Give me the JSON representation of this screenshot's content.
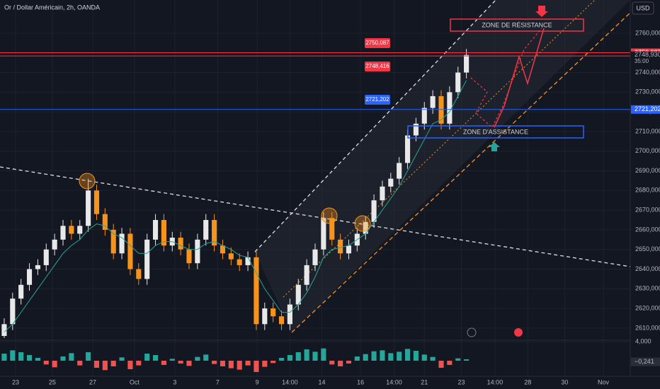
{
  "chart_data": {
    "type": "candlestick",
    "title": "Or / Dollar Américain, 2h, OANDA",
    "currency": "USD",
    "up_color": "#e8e8e8",
    "down_color": "#f7931a",
    "open": [
      2606,
      2612,
      2625,
      2632,
      2640,
      2642,
      2650,
      2655,
      2662,
      2658,
      2662,
      2680,
      2668,
      2660,
      2648,
      2658,
      2640,
      2635,
      2655,
      2665,
      2652,
      2656,
      2650,
      2643,
      2655,
      2665,
      2652,
      2648,
      2645,
      2642,
      2646,
      2612,
      2620,
      2616,
      2612,
      2622,
      2632,
      2642,
      2650,
      2666,
      2655,
      2648,
      2652,
      2658,
      2664,
      2675,
      2682,
      2686,
      2694,
      2708,
      2714,
      2722,
      2728,
      2714,
      2730,
      2740
    ],
    "high": [
      2615,
      2628,
      2635,
      2643,
      2645,
      2653,
      2658,
      2665,
      2665,
      2665,
      2686,
      2683,
      2671,
      2663,
      2661,
      2661,
      2643,
      2658,
      2668,
      2668,
      2659,
      2659,
      2653,
      2658,
      2668,
      2668,
      2655,
      2651,
      2648,
      2649,
      2649,
      2623,
      2623,
      2619,
      2625,
      2635,
      2645,
      2653,
      2669,
      2669,
      2658,
      2655,
      2661,
      2667,
      2678,
      2685,
      2689,
      2697,
      2711,
      2717,
      2725,
      2731,
      2731,
      2733,
      2743,
      2752
    ],
    "low": [
      2605,
      2609,
      2622,
      2629,
      2637,
      2639,
      2647,
      2652,
      2655,
      2655,
      2659,
      2665,
      2657,
      2645,
      2645,
      2637,
      2632,
      2632,
      2652,
      2649,
      2649,
      2647,
      2640,
      2640,
      2652,
      2649,
      2645,
      2642,
      2639,
      2639,
      2609,
      2609,
      2613,
      2609,
      2609,
      2619,
      2629,
      2639,
      2647,
      2652,
      2645,
      2645,
      2649,
      2655,
      2661,
      2672,
      2679,
      2683,
      2691,
      2705,
      2711,
      2719,
      2711,
      2711,
      2727,
      2737
    ],
    "close": [
      2612,
      2625,
      2632,
      2640,
      2642,
      2650,
      2655,
      2662,
      2658,
      2662,
      2680,
      2668,
      2660,
      2648,
      2658,
      2640,
      2635,
      2655,
      2665,
      2652,
      2656,
      2650,
      2643,
      2655,
      2665,
      2652,
      2648,
      2645,
      2642,
      2646,
      2612,
      2620,
      2616,
      2612,
      2622,
      2632,
      2642,
      2650,
      2666,
      2655,
      2648,
      2652,
      2658,
      2664,
      2675,
      2682,
      2686,
      2694,
      2708,
      2714,
      2722,
      2728,
      2714,
      2730,
      2740,
      2748.93
    ],
    "ma": {
      "color": "#26a69a",
      "values": [
        2608,
        2612,
        2618,
        2624,
        2630,
        2636,
        2642,
        2648,
        2652,
        2655,
        2660,
        2663,
        2662,
        2658,
        2656,
        2652,
        2648,
        2648,
        2652,
        2654,
        2654,
        2652,
        2650,
        2650,
        2653,
        2654,
        2652,
        2650,
        2647,
        2646,
        2638,
        2630,
        2624,
        2618,
        2618,
        2622,
        2628,
        2636,
        2646,
        2650,
        2651,
        2652,
        2655,
        2658,
        2664,
        2670,
        2676,
        2682,
        2690,
        2698,
        2706,
        2714,
        2716,
        2720,
        2728,
        2736
      ]
    },
    "xlim": [
      -0.5,
      74.5
    ],
    "ylim": [
      2604.2,
      2776.9
    ],
    "yticks": [
      {
        "value": 2610,
        "label": "2610,000"
      },
      {
        "value": 2620,
        "label": "2620,000"
      },
      {
        "value": 2630,
        "label": "2630,000"
      },
      {
        "value": 2640,
        "label": "2640,000"
      },
      {
        "value": 2650,
        "label": "2650,000"
      },
      {
        "value": 2660,
        "label": "2660,000"
      },
      {
        "value": 2670,
        "label": "2670,000"
      },
      {
        "value": 2680,
        "label": "2680,000"
      },
      {
        "value": 2690,
        "label": "2690,000"
      },
      {
        "value": 2700,
        "label": "2700,000"
      },
      {
        "value": 2710,
        "label": "2710,000"
      },
      {
        "value": 2720,
        "label": "2720,000"
      },
      {
        "value": 2730,
        "label": "2730,000"
      },
      {
        "value": 2740,
        "label": "2740,000"
      },
      {
        "value": 2750,
        "label": "2750,000"
      },
      {
        "value": 2760,
        "label": "2760,000"
      }
    ],
    "xticks": [
      {
        "value": 1.35,
        "label": "23"
      },
      {
        "value": 5.73,
        "label": "25"
      },
      {
        "value": 10.54,
        "label": "27"
      },
      {
        "value": 15.5,
        "label": "Oct"
      },
      {
        "value": 20.3,
        "label": "3"
      },
      {
        "value": 25.4,
        "label": "7"
      },
      {
        "value": 30.1,
        "label": "9"
      },
      {
        "value": 34,
        "label": "14:00"
      },
      {
        "value": 37.8,
        "label": "14"
      },
      {
        "value": 42.4,
        "label": "16"
      },
      {
        "value": 46.4,
        "label": "14:00"
      },
      {
        "value": 50,
        "label": "21"
      },
      {
        "value": 54.4,
        "label": "23"
      },
      {
        "value": 58.4,
        "label": "14:00"
      },
      {
        "value": 62.3,
        "label": "28"
      },
      {
        "value": 66.7,
        "label": "30"
      },
      {
        "value": 71.3,
        "label": "Nov"
      }
    ],
    "levels": [
      {
        "value": 2750.087,
        "label": "2750,087",
        "color": "#f23645"
      },
      {
        "value": 2748.416,
        "label": "2748,416",
        "color": "#f23645"
      },
      {
        "value": 2721.202,
        "label": "2721,202",
        "color": "#2962ff"
      }
    ],
    "last_price": {
      "value": 2748.93,
      "label": "2748,930",
      "countdown": "35:00"
    },
    "annotations": [
      "ZONE DE RÉSISTANCE",
      "ZONE D'ASSISTANCE"
    ],
    "macd": {
      "ylim": [
        -3,
        4.2
      ],
      "yticks": [
        {
          "value": 4,
          "label": "4,000"
        }
      ],
      "up_color": "#26a69a",
      "down_color": "#ef5350",
      "values": [
        1.5,
        2.2,
        1.8,
        1.2,
        0.6,
        -0.8,
        -1.4,
        0.9,
        1.6,
        -1.0,
        1.8,
        -1.5,
        -2.0,
        -1.2,
        0.7,
        -1.8,
        -1.0,
        1.5,
        1.2,
        -0.9,
        0.4,
        -0.6,
        -1.1,
        0.8,
        1.3,
        -0.7,
        -1.2,
        -1.6,
        -1.9,
        -1.0,
        -2.4,
        -1.3,
        -0.5,
        0.6,
        1.2,
        1.8,
        2.4,
        1.9,
        2.6,
        -0.8,
        -1.2,
        -0.6,
        0.9,
        1.4,
        2.0,
        2.2,
        1.6,
        1.9,
        2.5,
        2.1,
        1.3,
        0.8,
        -1.5,
        -0.9,
        0.5,
        0.3
      ],
      "last": {
        "value": -0.241,
        "label": "−0,241"
      }
    }
  }
}
